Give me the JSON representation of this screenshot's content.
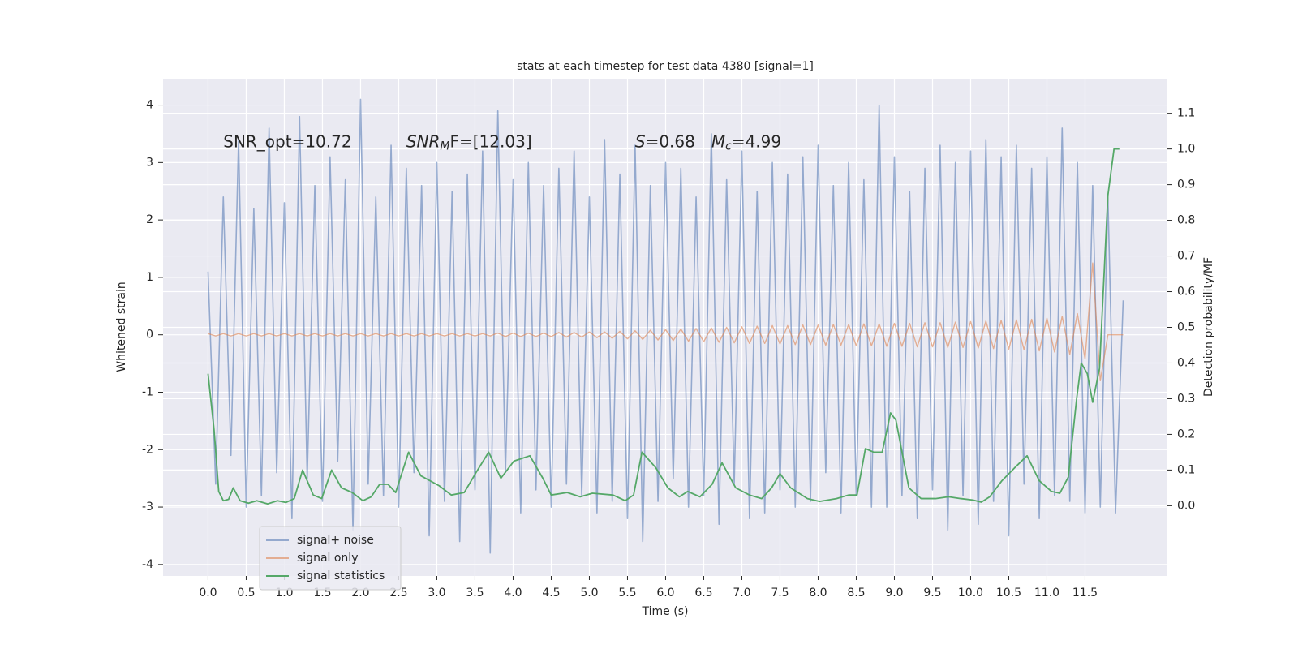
{
  "chart_data": {
    "type": "line",
    "title": "stats at each timestep for test data 4380 [signal=1]",
    "xlabel": "Time (s)",
    "ylabel": "Whitened strain",
    "y2label": "Detection probability/MF",
    "annotations": [
      [
        {
          "text": "SNR_opt=10.72"
        }
      ],
      [
        {
          "text": "SNR",
          "style": "italic"
        },
        {
          "text": "M",
          "style": "sub"
        },
        {
          "text": "F=[12.03]"
        }
      ],
      [
        {
          "text": "S",
          "style": "italic"
        },
        {
          "text": "=0.68"
        }
      ],
      [
        {
          "text": "M",
          "style": "italic"
        },
        {
          "text": "c",
          "style": "sub"
        },
        {
          "text": "=4.99"
        }
      ]
    ],
    "grid": true,
    "legend": "lower left",
    "xlim": [
      -0.59,
      12.58
    ],
    "ylim": [
      -4.2,
      4.46
    ],
    "y2lim": [
      -0.197,
      1.197
    ],
    "xticks": [
      {
        "value": 0,
        "label": "0.0"
      },
      0.5,
      {
        "value": 1,
        "label": "1.0"
      },
      1.5,
      {
        "value": 2,
        "label": "2.0"
      },
      2.5,
      {
        "value": 3,
        "label": "3.0"
      },
      3.5,
      {
        "value": 4,
        "label": "4.0"
      },
      4.5,
      {
        "value": 5,
        "label": "5.0"
      },
      5.5,
      {
        "value": 6,
        "label": "6.0"
      },
      6.5,
      {
        "value": 7,
        "label": "7.0"
      },
      7.5,
      {
        "value": 8,
        "label": "8.0"
      },
      8.5,
      {
        "value": 9,
        "label": "9.0"
      },
      9.5,
      {
        "value": 10,
        "label": "10.0"
      },
      10.5,
      {
        "value": 11,
        "label": "11.0"
      },
      11.5
    ],
    "yticks": [
      -4,
      -3,
      -2,
      -1,
      0,
      1,
      2,
      3,
      4
    ],
    "y2ticks": [
      {
        "value": 0,
        "label": "0.0"
      },
      0.1,
      0.2,
      0.3,
      0.4,
      0.5,
      0.6,
      0.7,
      0.8,
      0.9,
      {
        "value": 1,
        "label": "1.0"
      },
      1.1
    ],
    "x": [
      0,
      0.1,
      0.2,
      0.3,
      0.4,
      0.5,
      0.6,
      0.7,
      0.8,
      0.9,
      1,
      1.1,
      1.2,
      1.3,
      1.4,
      1.5,
      1.6,
      1.7,
      1.8,
      1.9,
      2,
      2.1,
      2.2,
      2.3,
      2.4,
      2.5,
      2.6,
      2.7,
      2.8,
      2.9,
      3,
      3.1,
      3.2,
      3.3,
      3.4,
      3.5,
      3.6,
      3.7,
      3.8,
      3.9,
      4,
      4.1,
      4.2,
      4.3,
      4.4,
      4.5,
      4.6,
      4.7,
      4.8,
      4.9,
      5,
      5.1,
      5.2,
      5.3,
      5.4,
      5.5,
      5.6,
      5.7,
      5.8,
      5.9,
      6,
      6.1,
      6.2,
      6.3,
      6.4,
      6.5,
      6.6,
      6.7,
      6.8,
      6.9,
      7,
      7.1,
      7.2,
      7.3,
      7.4,
      7.5,
      7.6,
      7.7,
      7.8,
      7.9,
      8,
      8.1,
      8.2,
      8.3,
      8.4,
      8.5,
      8.6,
      8.7,
      8.8,
      8.9,
      9,
      9.1,
      9.2,
      9.3,
      9.4,
      9.5,
      9.6,
      9.7,
      9.8,
      9.9,
      10,
      10.1,
      10.2,
      10.3,
      10.4,
      10.5,
      10.6,
      10.7,
      10.8,
      10.9,
      11,
      11.1,
      11.2,
      11.3,
      11.4,
      11.5,
      11.6,
      11.7,
      11.8,
      11.9,
      12
    ],
    "series": [
      {
        "name": "signal+ noise",
        "color": "#4c72b0",
        "values": [
          1.1,
          -2.6,
          2.4,
          -2.1,
          3.4,
          -3.0,
          2.2,
          -2.8,
          3.6,
          -2.4,
          2.3,
          -3.2,
          3.8,
          -2.5,
          2.6,
          -2.9,
          3.1,
          -2.2,
          2.7,
          -3.4,
          4.1,
          -2.6,
          2.4,
          -2.8,
          3.3,
          -3.0,
          2.9,
          -2.4,
          2.6,
          -3.5,
          3.0,
          -2.9,
          2.5,
          -3.6,
          2.8,
          -2.7,
          3.2,
          -3.8,
          3.9,
          -2.4,
          2.7,
          -3.1,
          3.0,
          -2.7,
          2.6,
          -3.0,
          2.9,
          -2.6,
          3.2,
          -2.8,
          2.4,
          -3.1,
          3.4,
          -2.9,
          2.8,
          -3.2,
          3.3,
          -3.6,
          2.6,
          -2.9,
          3.0,
          -2.5,
          2.9,
          -3.0,
          2.4,
          -2.8,
          3.5,
          -3.3,
          2.7,
          -2.6,
          3.2,
          -3.2,
          2.5,
          -3.1,
          3.0,
          -2.7,
          2.8,
          -3.0,
          3.1,
          -2.9,
          3.3,
          -2.4,
          2.6,
          -3.1,
          3.0,
          -2.8,
          2.7,
          -3.0,
          4.0,
          -3.0,
          3.1,
          -2.8,
          2.5,
          -3.2,
          2.9,
          -2.7,
          3.3,
          -3.4,
          3.0,
          -2.8,
          3.2,
          -3.3,
          3.4,
          -2.9,
          3.1,
          -3.5,
          3.3,
          -2.6,
          2.9,
          -3.2,
          3.1,
          -2.8,
          3.6,
          -2.9,
          3.0,
          -3.1,
          2.6,
          -3.0,
          2.4,
          -3.1,
          0.6
        ]
      },
      {
        "name": "signal only",
        "color": "#dd8452",
        "values": [
          0.02,
          -0.02,
          0.02,
          -0.02,
          0.02,
          -0.02,
          0.02,
          -0.02,
          0.02,
          -0.02,
          0.02,
          -0.02,
          0.02,
          -0.02,
          0.02,
          -0.02,
          0.02,
          -0.02,
          0.02,
          -0.02,
          0.02,
          -0.02,
          0.02,
          -0.02,
          0.02,
          -0.02,
          0.02,
          -0.02,
          0.02,
          -0.02,
          0.02,
          -0.02,
          0.02,
          -0.02,
          0.02,
          -0.02,
          0.02,
          -0.02,
          0.03,
          -0.03,
          0.03,
          -0.03,
          0.03,
          -0.03,
          0.03,
          -0.03,
          0.04,
          -0.04,
          0.04,
          -0.04,
          0.05,
          -0.05,
          0.05,
          -0.06,
          0.06,
          -0.07,
          0.07,
          -0.08,
          0.08,
          -0.09,
          0.09,
          -0.1,
          0.1,
          -0.11,
          0.11,
          -0.12,
          0.12,
          -0.13,
          0.13,
          -0.14,
          0.14,
          -0.15,
          0.15,
          -0.15,
          0.16,
          -0.16,
          0.16,
          -0.17,
          0.17,
          -0.17,
          0.17,
          -0.18,
          0.18,
          -0.18,
          0.18,
          -0.19,
          0.19,
          -0.19,
          0.19,
          -0.2,
          0.2,
          -0.2,
          0.2,
          -0.21,
          0.21,
          -0.21,
          0.21,
          -0.22,
          0.22,
          -0.22,
          0.23,
          -0.23,
          0.24,
          -0.24,
          0.25,
          -0.25,
          0.26,
          -0.26,
          0.27,
          -0.28,
          0.29,
          -0.3,
          0.32,
          -0.34,
          0.37,
          -0.42,
          1.25,
          -0.8,
          0,
          0,
          0
        ]
      },
      {
        "name": "signal statistics",
        "color": "#55a868",
        "axis": "y2",
        "x": [
          0,
          0.08,
          0.14,
          0.2,
          0.27,
          0.33,
          0.42,
          0.53,
          0.64,
          0.78,
          0.91,
          1.02,
          1.13,
          1.24,
          1.38,
          1.49,
          1.62,
          1.75,
          1.89,
          2.03,
          2.14,
          2.25,
          2.36,
          2.46,
          2.63,
          2.79,
          3.03,
          3.19,
          3.36,
          3.52,
          3.68,
          3.84,
          4.01,
          4.22,
          4.39,
          4.5,
          4.71,
          4.88,
          5.04,
          5.31,
          5.47,
          5.58,
          5.69,
          5.87,
          6.03,
          6.18,
          6.29,
          6.45,
          6.61,
          6.74,
          6.92,
          7.1,
          7.26,
          7.39,
          7.5,
          7.64,
          7.86,
          8.02,
          8.24,
          8.4,
          8.51,
          8.62,
          8.73,
          8.84,
          8.95,
          9.02,
          9.19,
          9.35,
          9.54,
          9.71,
          9.87,
          10.03,
          10.14,
          10.25,
          10.41,
          10.58,
          10.74,
          10.9,
          11.06,
          11.17,
          11.28,
          11.39,
          11.45,
          11.53,
          11.6,
          11.69,
          11.8,
          11.88,
          11.95
        ],
        "values": [
          0.37,
          0.21,
          0.04,
          0.014,
          0.018,
          0.05,
          0.014,
          0.007,
          0.014,
          0.005,
          0.014,
          0.009,
          0.02,
          0.1,
          0.03,
          0.02,
          0.1,
          0.05,
          0.037,
          0.014,
          0.025,
          0.06,
          0.06,
          0.037,
          0.15,
          0.084,
          0.056,
          0.03,
          0.037,
          0.095,
          0.15,
          0.077,
          0.125,
          0.14,
          0.077,
          0.03,
          0.037,
          0.025,
          0.035,
          0.03,
          0.014,
          0.03,
          0.15,
          0.107,
          0.05,
          0.025,
          0.04,
          0.025,
          0.06,
          0.12,
          0.05,
          0.03,
          0.02,
          0.05,
          0.09,
          0.05,
          0.02,
          0.012,
          0.02,
          0.03,
          0.03,
          0.16,
          0.15,
          0.15,
          0.26,
          0.24,
          0.05,
          0.02,
          0.02,
          0.025,
          0.02,
          0.016,
          0.01,
          0.025,
          0.07,
          0.107,
          0.14,
          0.07,
          0.04,
          0.035,
          0.08,
          0.3,
          0.4,
          0.37,
          0.29,
          0.385,
          0.87,
          1.0,
          1.0
        ]
      }
    ]
  }
}
